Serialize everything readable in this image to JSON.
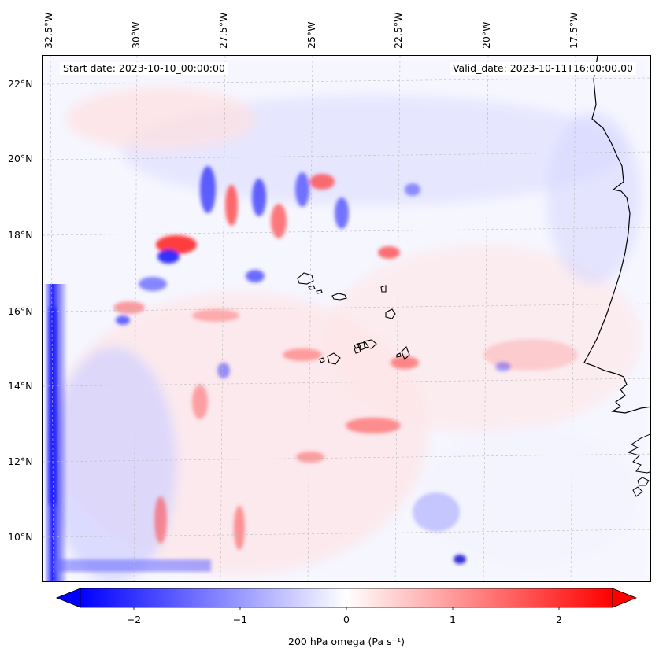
{
  "map": {
    "start_date_text": "Start date: 2023-10-10_00:00:00",
    "valid_date_text": "Valid_date: 2023-10-11T16:00:00.00",
    "longitude_labels": [
      "32.5°W",
      "30°W",
      "27.5°W",
      "25°W",
      "22.5°W",
      "20°W",
      "17.5°W"
    ],
    "latitude_labels": [
      "22°N",
      "20°N",
      "18°N",
      "16°N",
      "14°N",
      "12°N",
      "10°N"
    ],
    "field": "200 hPa omega",
    "colormap": "bwr",
    "colors": {
      "negative": "#0000ff",
      "zero": "#ffffff",
      "positive": "#ff0000",
      "coastline": "#000000",
      "gridline": "#bbbbbb"
    },
    "gridlines": true
  },
  "colorbar": {
    "label": "200 hPa omega (Pa s⁻¹)",
    "ticks": [
      "−2",
      "−1",
      "0",
      "1",
      "2"
    ],
    "range": [
      -2.6,
      2.6
    ],
    "extend": "both"
  }
}
